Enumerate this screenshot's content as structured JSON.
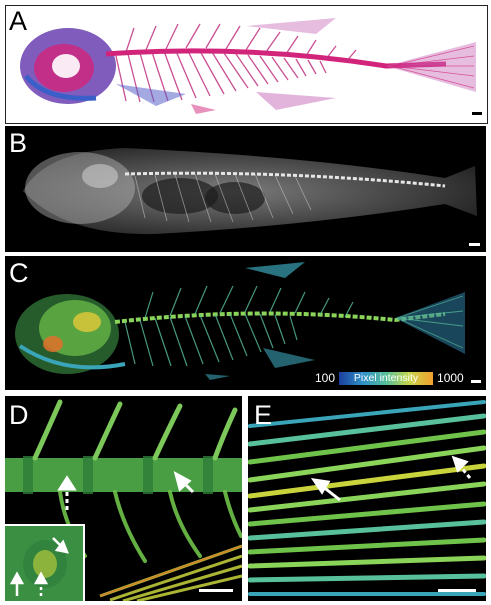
{
  "panels": {
    "a": {
      "label": "A",
      "description": "Cleared and double-stained whole fish skeleton (alizarin red / alcian blue)"
    },
    "b": {
      "label": "B",
      "description": "Grayscale X-ray of whole fish"
    },
    "c": {
      "label": "C",
      "description": "False-colored micro-CT pixel intensity image of fish skeleton"
    },
    "d": {
      "label": "D",
      "description": "Close-up of vertebrae and ribs with arrows and inset"
    },
    "e": {
      "label": "E",
      "description": "Close-up of fin rays with arrows"
    }
  },
  "legend": {
    "min": "100",
    "title": "Pixel intensity",
    "max": "1000",
    "colors": [
      "#1c3f9e",
      "#2f8fc9",
      "#58c09a",
      "#c8d64a",
      "#f2a02e"
    ]
  },
  "colors": {
    "stain_red": "#d2247a",
    "stain_blue": "#3a5fc8",
    "xray_bone": "#d9d9d9",
    "ct_green": "#4fbf5a",
    "ct_yellow": "#c9d43c",
    "background_dark": "#000000"
  }
}
